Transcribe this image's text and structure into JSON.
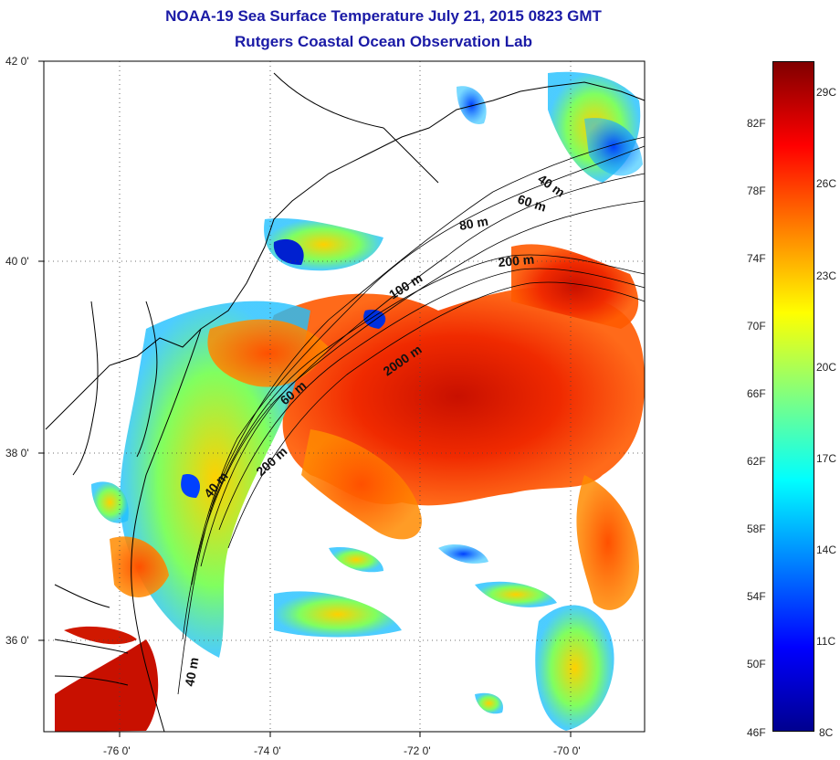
{
  "title": "NOAA-19 Sea Surface Temperature July 21, 2015 0823 GMT",
  "subtitle": "Rutgers Coastal Ocean Observation Lab",
  "map": {
    "lat_ticks": [
      "42 0'",
      "40 0'",
      "38 0'",
      "36 0'"
    ],
    "lon_ticks": [
      "-76 0'",
      "-74 0'",
      "-72 0'",
      "-70 0'"
    ],
    "contour_labels": [
      "40 m",
      "60 m",
      "80 m",
      "200 m",
      "100 m",
      "2000 m",
      "60 m",
      "200 m",
      "40 m",
      "40 m"
    ],
    "grid": "dotted"
  },
  "colorbar": {
    "fahrenheit": [
      "82F",
      "78F",
      "74F",
      "70F",
      "66F",
      "62F",
      "58F",
      "54F",
      "50F",
      "46F"
    ],
    "celsius": [
      "29C",
      "26C",
      "23C",
      "20C",
      "17C",
      "14C",
      "11C",
      "8C"
    ],
    "colors": [
      "#00008f",
      "#0000ff",
      "#0080ff",
      "#00ffff",
      "#80ff80",
      "#ffff00",
      "#ff8000",
      "#ff0000",
      "#800000"
    ]
  }
}
